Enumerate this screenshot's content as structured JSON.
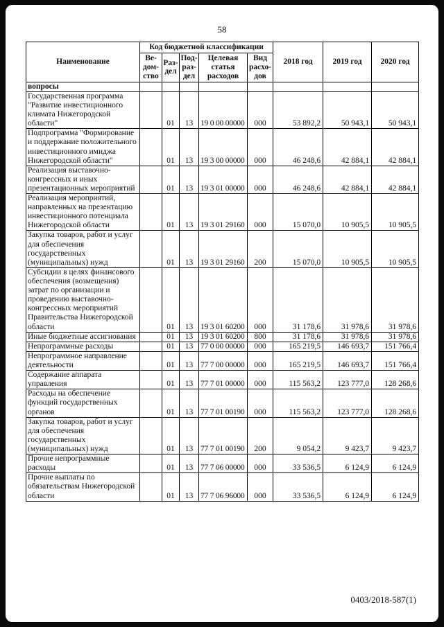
{
  "page": {
    "number": "58",
    "footer_code": "0403/2018-587(1)"
  },
  "table": {
    "header": {
      "name": "Наименование",
      "code_group": "Код бюджетной классификации",
      "vedomstvo": "Ве-\nдом-\nство",
      "razdel": "Раз-\nдел",
      "podrazdel": "Под-\nраз-\nдел",
      "target": "Целевая\nстатья\nрасходов",
      "vid": "Вид\nрасхо-\nдов",
      "y2018": "2018 год",
      "y2019": "2019 год",
      "y2020": "2020 год"
    },
    "rows": [
      {
        "name": "вопросы",
        "bold": true,
        "ved": "",
        "razdel": "",
        "podrazdel": "",
        "target": "",
        "vid": "",
        "y2018": "",
        "y2019": "",
        "y2020": ""
      },
      {
        "name": "Государственная программа \"Развитие инвестиционного климата Нижегородской области\"",
        "bold": false,
        "ved": "",
        "razdel": "01",
        "podrazdel": "13",
        "target": "19 0 00 00000",
        "vid": "000",
        "y2018": "53 892,2",
        "y2019": "50 943,1",
        "y2020": "50 943,1"
      },
      {
        "name": "Подпрограмма \"Формирование и поддержание положительного инвестиционного имиджа Нижегородской области\"",
        "bold": false,
        "ved": "",
        "razdel": "01",
        "podrazdel": "13",
        "target": "19 3 00 00000",
        "vid": "000",
        "y2018": "46 248,6",
        "y2019": "42 884,1",
        "y2020": "42 884,1"
      },
      {
        "name": "Реализация выставочно-конгрессных и иных презентационных мероприятий",
        "bold": false,
        "ved": "",
        "razdel": "01",
        "podrazdel": "13",
        "target": "19 3 01 00000",
        "vid": "000",
        "y2018": "46 248,6",
        "y2019": "42 884,1",
        "y2020": "42 884,1"
      },
      {
        "name": "Реализация мероприятий, направленных на презентацию инвестиционного потенциала Нижегородской области",
        "bold": false,
        "ved": "",
        "razdel": "01",
        "podrazdel": "13",
        "target": "19 3 01 29160",
        "vid": "000",
        "y2018": "15 070,0",
        "y2019": "10 905,5",
        "y2020": "10 905,5"
      },
      {
        "name": "Закупка товаров, работ и услуг для обеспечения государственных (муниципальных) нужд",
        "bold": false,
        "ved": "",
        "razdel": "01",
        "podrazdel": "13",
        "target": "19 3 01 29160",
        "vid": "200",
        "y2018": "15 070,0",
        "y2019": "10 905,5",
        "y2020": "10 905,5"
      },
      {
        "name": "Субсидии в целях финансового обеспечения (возмещения) затрат по организации и проведению выставочно-конгрессных мероприятий Правительства Нижегородской области",
        "bold": false,
        "ved": "",
        "razdel": "01",
        "podrazdel": "13",
        "target": "19 3 01 60200",
        "vid": "000",
        "y2018": "31 178,6",
        "y2019": "31 978,6",
        "y2020": "31 978,6"
      },
      {
        "name": "Иные бюджетные ассигнования",
        "bold": false,
        "ved": "",
        "razdel": "01",
        "podrazdel": "13",
        "target": "19 3 01 60200",
        "vid": "800",
        "y2018": "31 178,6",
        "y2019": "31 978,6",
        "y2020": "31 978,6"
      },
      {
        "name": "Непрограммные расходы",
        "bold": false,
        "ved": "",
        "razdel": "01",
        "podrazdel": "13",
        "target": "77 0 00 00000",
        "vid": "000",
        "y2018": "165 219,5",
        "y2019": "146 693,7",
        "y2020": "151 766,4"
      },
      {
        "name": "Непрограммное направление деятельности",
        "bold": false,
        "ved": "",
        "razdel": "01",
        "podrazdel": "13",
        "target": "77 7 00 00000",
        "vid": "000",
        "y2018": "165 219,5",
        "y2019": "146 693,7",
        "y2020": "151 766,4"
      },
      {
        "name": "Содержание аппарата управления",
        "bold": false,
        "ved": "",
        "razdel": "01",
        "podrazdel": "13",
        "target": "77 7 01 00000",
        "vid": "000",
        "y2018": "115 563,2",
        "y2019": "123 777,0",
        "y2020": "128 268,6"
      },
      {
        "name": "Расходы на обеспечение функций государственных органов",
        "bold": false,
        "ved": "",
        "razdel": "01",
        "podrazdel": "13",
        "target": "77 7 01 00190",
        "vid": "000",
        "y2018": "115 563,2",
        "y2019": "123 777,0",
        "y2020": "128 268,6"
      },
      {
        "name": "Закупка товаров, работ и услуг для обеспечения государственных (муниципальных) нужд",
        "bold": false,
        "ved": "",
        "razdel": "01",
        "podrazdel": "13",
        "target": "77 7 01 00190",
        "vid": "200",
        "y2018": "9 054,2",
        "y2019": "9 423,7",
        "y2020": "9 423,7"
      },
      {
        "name": "Прочие непрограммные расходы",
        "bold": false,
        "ved": "",
        "razdel": "01",
        "podrazdel": "13",
        "target": "77 7 06 00000",
        "vid": "000",
        "y2018": "33 536,5",
        "y2019": "6 124,9",
        "y2020": "6 124,9"
      },
      {
        "name": "Прочие выплаты по обязательствам Нижегородской области",
        "bold": false,
        "ved": "",
        "razdel": "01",
        "podrazdel": "13",
        "target": "77 7 06 96000",
        "vid": "000",
        "y2018": "33 536,5",
        "y2019": "6 124,9",
        "y2020": "6 124,9"
      }
    ]
  }
}
